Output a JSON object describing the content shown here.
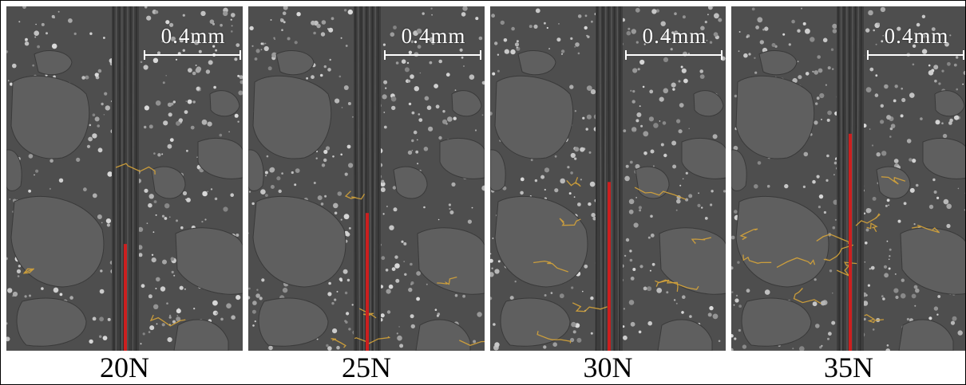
{
  "figure": {
    "panels": [
      {
        "label": "20N",
        "scale_label": "0.4mm"
      },
      {
        "label": "25N",
        "scale_label": "0.4mm"
      },
      {
        "label": "30N",
        "scale_label": "0.4mm"
      },
      {
        "label": "35N",
        "scale_label": "0.4mm"
      }
    ],
    "red_crack_length_fraction": [
      0.31,
      0.4,
      0.49,
      0.63
    ],
    "colors": {
      "matrix": "#4e4e4e",
      "aggregate": "#5f5f5f",
      "crack_highlight": "#d6a43a",
      "fiber_crack": "#cc1f1f",
      "scale_bar": "#ffffff"
    }
  }
}
